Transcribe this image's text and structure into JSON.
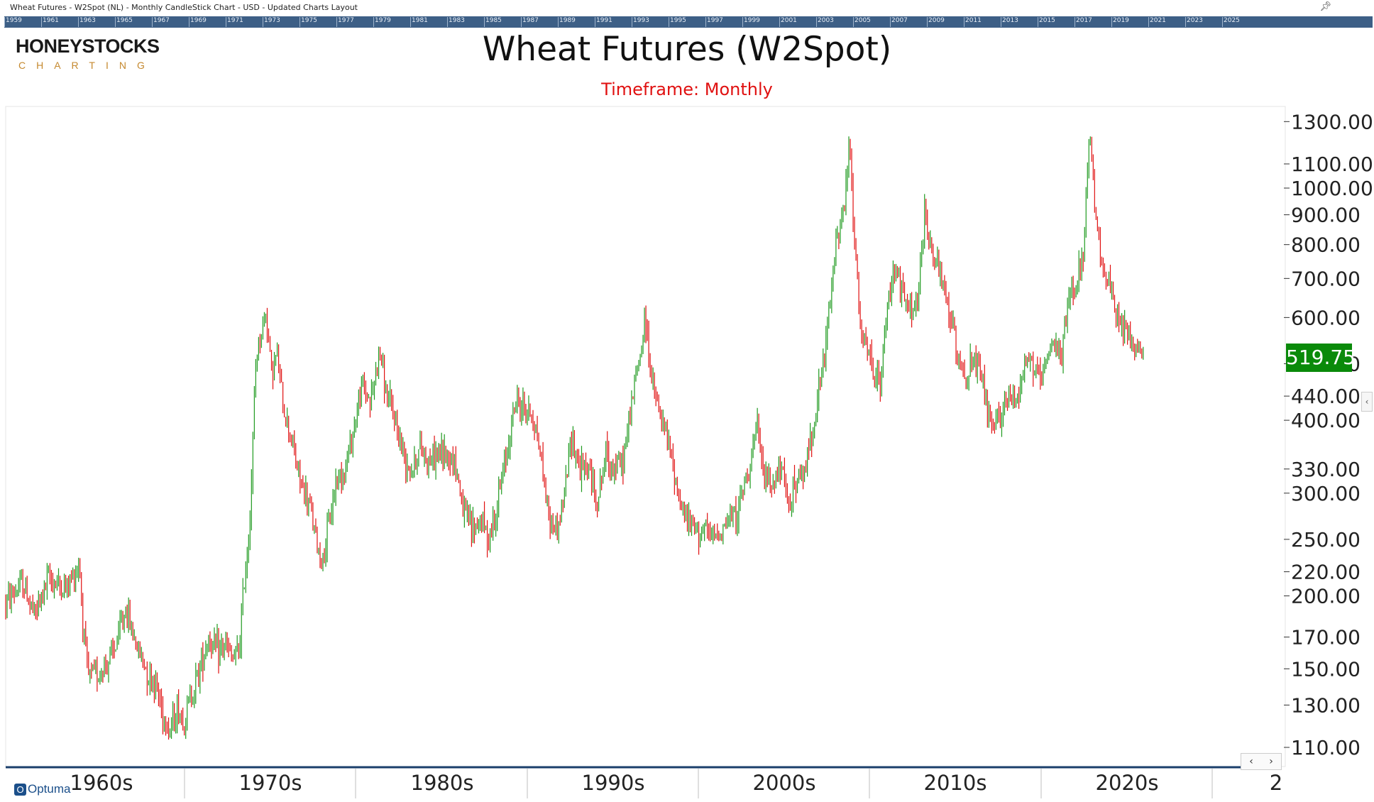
{
  "window": {
    "title": "Wheat Futures - W2Spot (NL) - Monthly CandleStick Chart - USD - Updated Charts Layout"
  },
  "navigator": {
    "years": [
      "1959",
      "1961",
      "1963",
      "1965",
      "1967",
      "1969",
      "1971",
      "1973",
      "1975",
      "1977",
      "1979",
      "1981",
      "1983",
      "1985",
      "1987",
      "1989",
      "1991",
      "1993",
      "1995",
      "1997",
      "1999",
      "2001",
      "2003",
      "2005",
      "2007",
      "2009",
      "2011",
      "2013",
      "2015",
      "2017",
      "2019",
      "2021",
      "2023",
      "2025"
    ]
  },
  "logo": {
    "main": "HONEYSTOCKS",
    "sub": "CHARTING"
  },
  "footer": {
    "brand": "Optuma"
  },
  "colors": {
    "up": "#1f9a1f",
    "down": "#e01010",
    "price_tag": "#0a8a0a",
    "axis": "#1b3f6b",
    "subtitle": "#e01010"
  },
  "chart_data": {
    "type": "candlestick",
    "title": "Wheat Futures (W2Spot)",
    "subtitle": "Timeframe: Monthly",
    "scale": "log",
    "ylim": [
      102,
      1380
    ],
    "y_ticks": [
      "1300.00",
      "1100.00",
      "1000.00",
      "900.00",
      "800.00",
      "700.00",
      "600.00",
      "500.00",
      "440.00",
      "400.00",
      "330.00",
      "300.00",
      "250.00",
      "220.00",
      "200.00",
      "170.00",
      "150.00",
      "130.00",
      "110.00"
    ],
    "x_ticks": [
      "1960s",
      "1970s",
      "1980s",
      "1990s",
      "2000s",
      "2010s",
      "2020s",
      "2"
    ],
    "last_price": "519.75",
    "x_range": [
      1959.0,
      2026.0
    ],
    "series": [
      {
        "values": [
          [
            1959.0,
            195
          ],
          [
            1960.0,
            210
          ],
          [
            1960.7,
            185
          ],
          [
            1961.5,
            215
          ],
          [
            1962.5,
            205
          ],
          [
            1963.3,
            228
          ],
          [
            1963.5,
            180
          ],
          [
            1963.8,
            145
          ],
          [
            1964.5,
            148
          ],
          [
            1965.3,
            160
          ],
          [
            1966.0,
            190
          ],
          [
            1966.6,
            165
          ],
          [
            1967.2,
            150
          ],
          [
            1967.8,
            140
          ],
          [
            1968.2,
            125
          ],
          [
            1968.6,
            118
          ],
          [
            1969.0,
            128
          ],
          [
            1969.4,
            122
          ],
          [
            1969.8,
            135
          ],
          [
            1970.3,
            150
          ],
          [
            1970.8,
            170
          ],
          [
            1971.3,
            160
          ],
          [
            1971.8,
            165
          ],
          [
            1972.2,
            155
          ],
          [
            1972.6,
            160
          ],
          [
            1972.9,
            210
          ],
          [
            1973.2,
            260
          ],
          [
            1973.4,
            350
          ],
          [
            1973.6,
            520
          ],
          [
            1973.9,
            560
          ],
          [
            1974.2,
            620
          ],
          [
            1974.5,
            480
          ],
          [
            1974.8,
            520
          ],
          [
            1975.2,
            420
          ],
          [
            1975.6,
            380
          ],
          [
            1976.0,
            330
          ],
          [
            1976.4,
            300
          ],
          [
            1976.8,
            280
          ],
          [
            1977.2,
            240
          ],
          [
            1977.5,
            230
          ],
          [
            1977.9,
            270
          ],
          [
            1978.3,
            320
          ],
          [
            1978.8,
            330
          ],
          [
            1979.3,
            390
          ],
          [
            1979.8,
            460
          ],
          [
            1980.3,
            430
          ],
          [
            1980.8,
            530
          ],
          [
            1981.2,
            440
          ],
          [
            1981.7,
            400
          ],
          [
            1982.2,
            350
          ],
          [
            1982.7,
            330
          ],
          [
            1983.2,
            360
          ],
          [
            1983.7,
            340
          ],
          [
            1984.2,
            350
          ],
          [
            1984.7,
            350
          ],
          [
            1985.2,
            340
          ],
          [
            1985.7,
            280
          ],
          [
            1986.2,
            260
          ],
          [
            1986.7,
            270
          ],
          [
            1987.2,
            250
          ],
          [
            1987.7,
            290
          ],
          [
            1988.2,
            350
          ],
          [
            1988.7,
            430
          ],
          [
            1989.2,
            420
          ],
          [
            1989.7,
            410
          ],
          [
            1990.2,
            350
          ],
          [
            1990.7,
            270
          ],
          [
            1991.2,
            260
          ],
          [
            1991.6,
            300
          ],
          [
            1992.0,
            380
          ],
          [
            1992.5,
            330
          ],
          [
            1993.0,
            330
          ],
          [
            1993.5,
            290
          ],
          [
            1994.0,
            350
          ],
          [
            1994.5,
            330
          ],
          [
            1995.0,
            340
          ],
          [
            1995.5,
            430
          ],
          [
            1996.0,
            520
          ],
          [
            1996.3,
            600
          ],
          [
            1996.7,
            460
          ],
          [
            1997.2,
            400
          ],
          [
            1997.7,
            360
          ],
          [
            1998.2,
            300
          ],
          [
            1998.7,
            270
          ],
          [
            1999.2,
            260
          ],
          [
            1999.7,
            260
          ],
          [
            2000.2,
            250
          ],
          [
            2000.7,
            260
          ],
          [
            2001.2,
            270
          ],
          [
            2001.7,
            280
          ],
          [
            2002.3,
            330
          ],
          [
            2002.8,
            390
          ],
          [
            2003.2,
            320
          ],
          [
            2003.7,
            310
          ],
          [
            2004.2,
            330
          ],
          [
            2004.6,
            290
          ],
          [
            2005.0,
            310
          ],
          [
            2005.5,
            320
          ],
          [
            2006.0,
            380
          ],
          [
            2006.6,
            480
          ],
          [
            2007.0,
            600
          ],
          [
            2007.5,
            850
          ],
          [
            2007.9,
            920
          ],
          [
            2008.2,
            1200
          ],
          [
            2008.5,
            800
          ],
          [
            2008.9,
            550
          ],
          [
            2009.3,
            520
          ],
          [
            2009.7,
            470
          ],
          [
            2010.0,
            460
          ],
          [
            2010.5,
            650
          ],
          [
            2010.9,
            750
          ],
          [
            2011.3,
            650
          ],
          [
            2011.8,
            610
          ],
          [
            2012.2,
            650
          ],
          [
            2012.6,
            900
          ],
          [
            2013.0,
            780
          ],
          [
            2013.5,
            700
          ],
          [
            2014.0,
            620
          ],
          [
            2014.5,
            520
          ],
          [
            2015.0,
            480
          ],
          [
            2015.5,
            500
          ],
          [
            2016.0,
            460
          ],
          [
            2016.5,
            380
          ],
          [
            2016.9,
            400
          ],
          [
            2017.4,
            440
          ],
          [
            2017.9,
            430
          ],
          [
            2018.4,
            500
          ],
          [
            2018.8,
            510
          ],
          [
            2019.3,
            460
          ],
          [
            2019.7,
            500
          ],
          [
            2020.2,
            540
          ],
          [
            2020.6,
            520
          ],
          [
            2021.0,
            650
          ],
          [
            2021.5,
            700
          ],
          [
            2021.9,
            800
          ],
          [
            2022.2,
            1250
          ],
          [
            2022.6,
            850
          ],
          [
            2023.0,
            740
          ],
          [
            2023.5,
            650
          ],
          [
            2023.9,
            580
          ],
          [
            2024.3,
            570
          ],
          [
            2024.8,
            540
          ],
          [
            2025.3,
            519.75
          ]
        ]
      }
    ]
  }
}
